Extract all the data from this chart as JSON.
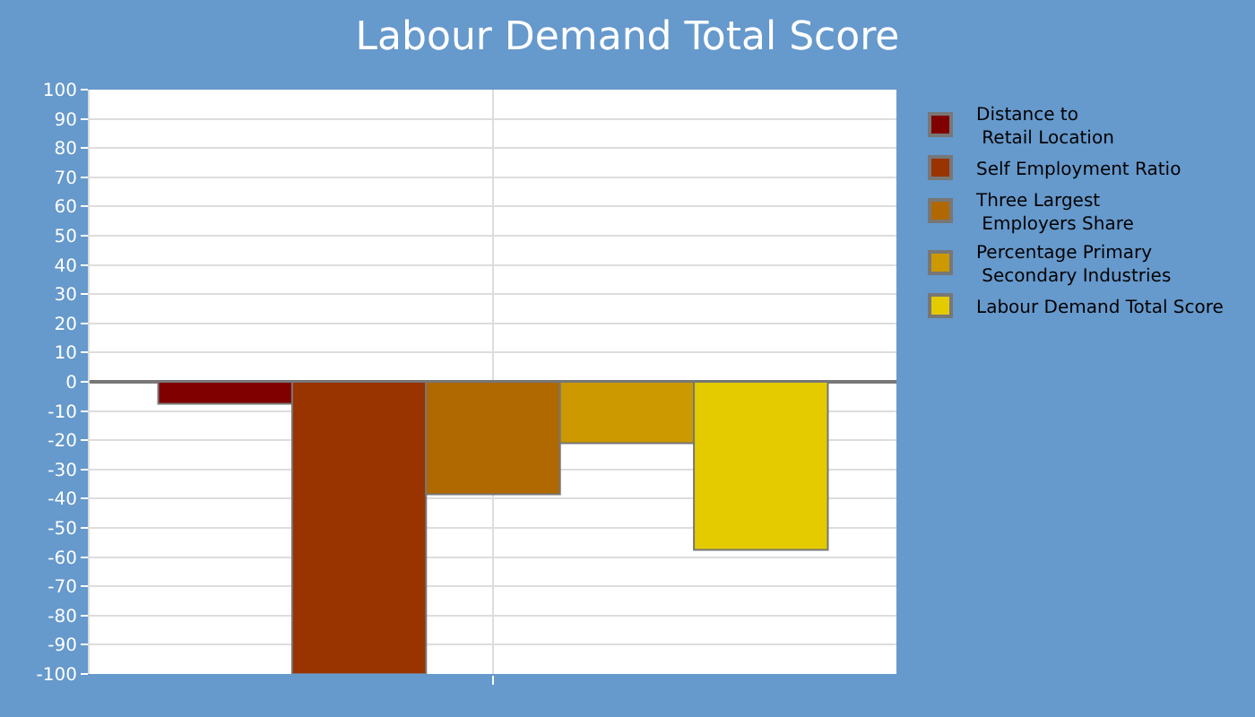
{
  "chart_data": {
    "type": "bar",
    "title": "Labour Demand Total Score",
    "categories": [
      null
    ],
    "series": [
      {
        "name": "Distance to\nRetail Location",
        "color": "#800000",
        "values": [
          -7.5
        ]
      },
      {
        "name": "Self Employment Ratio",
        "color": "#993300",
        "values": [
          -100
        ]
      },
      {
        "name": "Three Largest\nEmployers Share",
        "color": "#b06800",
        "values": [
          -38.5
        ]
      },
      {
        "name": "Percentage Primary\nSecondary Industries",
        "color": "#cc9900",
        "values": [
          -21
        ]
      },
      {
        "name": "Labour Demand Total Score",
        "color": "#e3cb00",
        "values": [
          -57.5
        ]
      }
    ],
    "ylim": [
      -100,
      100
    ],
    "yticks": [
      -100,
      -90,
      -80,
      -70,
      -60,
      -50,
      -40,
      -30,
      -20,
      -10,
      0,
      10,
      20,
      30,
      40,
      50,
      60,
      70,
      80,
      90,
      100
    ],
    "grid": true,
    "legend": "top right"
  }
}
